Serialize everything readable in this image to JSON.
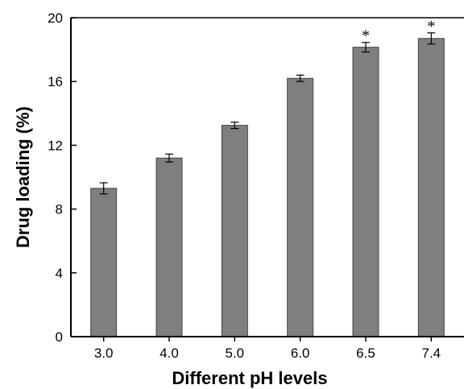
{
  "chart_data": {
    "type": "bar",
    "xlabel": "Different pH levels",
    "ylabel": "Drug loading (%)",
    "categories": [
      "3.0",
      "4.0",
      "5.0",
      "6.0",
      "6.5",
      "7.4"
    ],
    "values": [
      9.3,
      11.2,
      13.25,
      16.2,
      18.15,
      18.7
    ],
    "errors": [
      0.35,
      0.25,
      0.2,
      0.2,
      0.3,
      0.35
    ],
    "annotations": [
      "",
      "",
      "",
      "",
      "*",
      "*"
    ],
    "ylim": [
      0,
      20
    ],
    "yticks": [
      "0",
      "4",
      "8",
      "12",
      "16",
      "20"
    ],
    "ytick_values": [
      0,
      4,
      8,
      12,
      16,
      20
    ],
    "grid": false,
    "bar_color": "#7f7f7f"
  }
}
